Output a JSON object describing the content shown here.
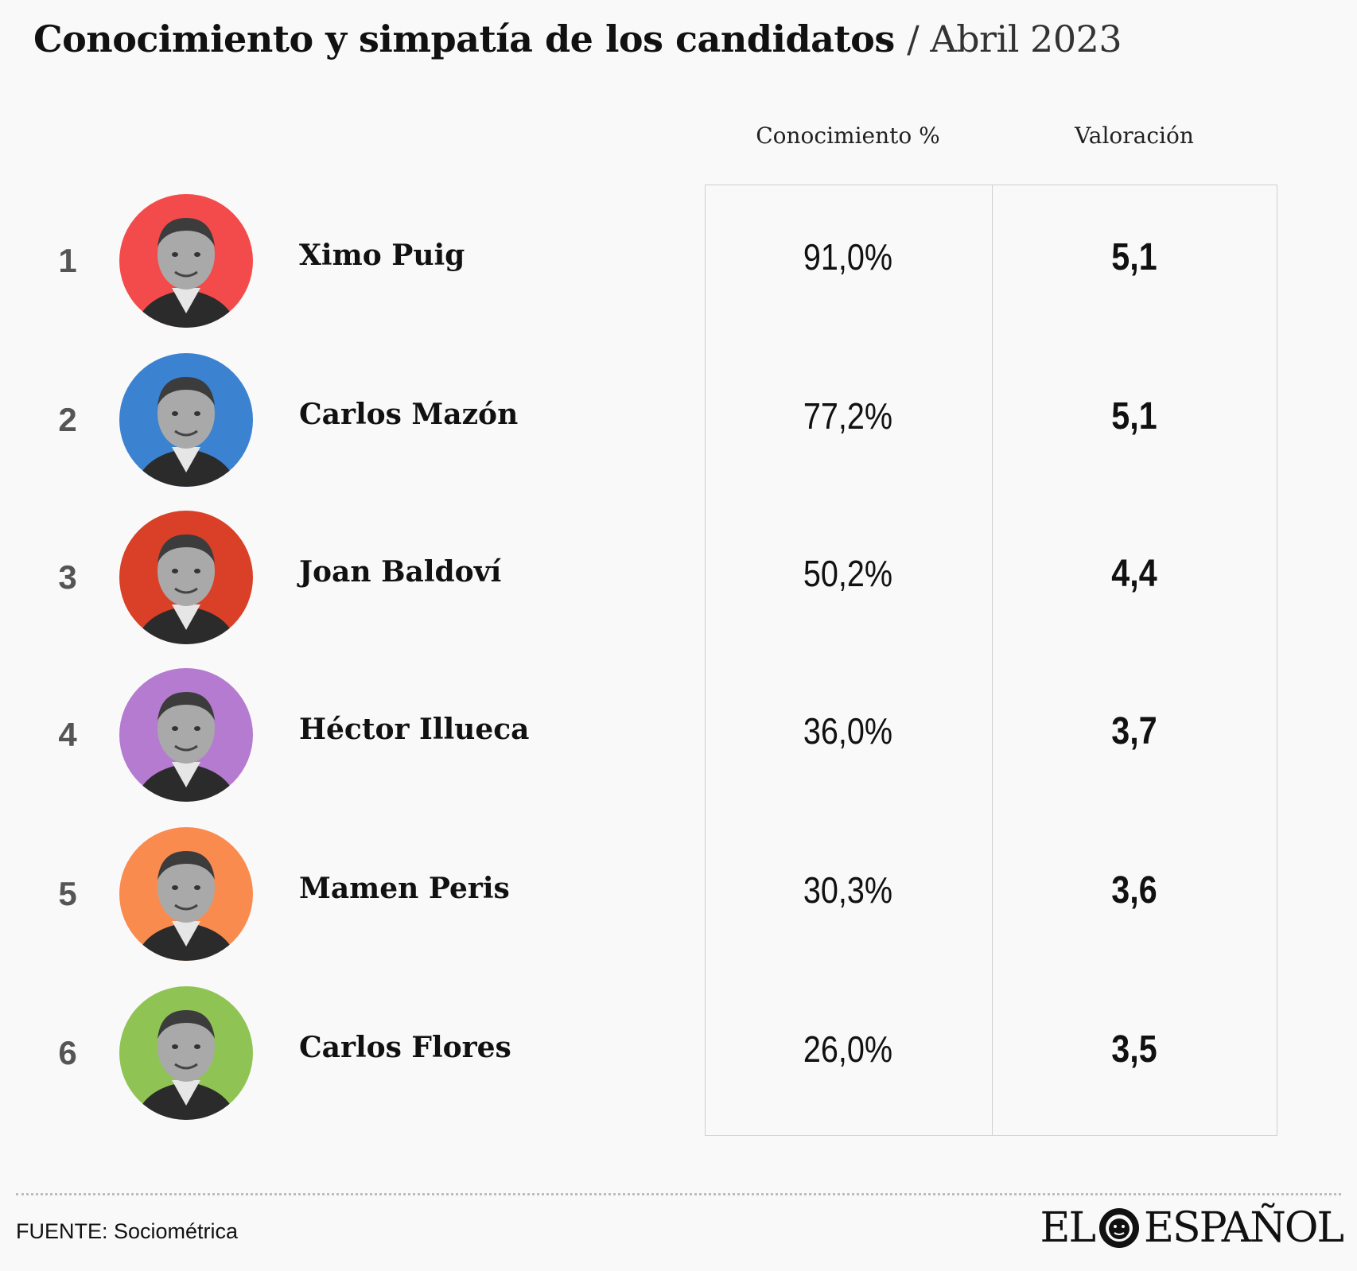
{
  "header": {
    "title": "Conocimiento y simpatía de los candidatos",
    "subtitle": "/ Abril 2023"
  },
  "columns": {
    "conocimiento": "Conocimiento %",
    "valoracion": "Valoración"
  },
  "rows": [
    {
      "rank": "1",
      "name": "Ximo Puig",
      "conocimiento": "91,0%",
      "valoracion": "5,1",
      "color": "#f34b4b"
    },
    {
      "rank": "2",
      "name": "Carlos Mazón",
      "conocimiento": "77,2%",
      "valoracion": "5,1",
      "color": "#3b82d1"
    },
    {
      "rank": "3",
      "name": "Joan Baldoví",
      "conocimiento": "50,2%",
      "valoracion": "4,4",
      "color": "#d94027"
    },
    {
      "rank": "4",
      "name": "Héctor Illueca",
      "conocimiento": "36,0%",
      "valoracion": "3,7",
      "color": "#b57bd1"
    },
    {
      "rank": "5",
      "name": "Mamen Peris",
      "conocimiento": "30,3%",
      "valoracion": "3,6",
      "color": "#f98b4f"
    },
    {
      "rank": "6",
      "name": "Carlos Flores",
      "conocimiento": "26,0%",
      "valoracion": "3,5",
      "color": "#8fc454"
    }
  ],
  "chart_data": {
    "type": "table",
    "title": "Conocimiento y simpatía de los candidatos",
    "subtitle": "Abril 2023",
    "columns": [
      "Conocimiento %",
      "Valoración"
    ],
    "categories": [
      "Ximo Puig",
      "Carlos Mazón",
      "Joan Baldoví",
      "Héctor Illueca",
      "Mamen Peris",
      "Carlos Flores"
    ],
    "series": [
      {
        "name": "Conocimiento %",
        "values": [
          91.0,
          77.2,
          50.2,
          36.0,
          30.3,
          26.0
        ]
      },
      {
        "name": "Valoración",
        "values": [
          5.1,
          5.1,
          4.4,
          3.7,
          3.6,
          3.5
        ]
      }
    ]
  },
  "footer": {
    "source": "FUENTE: Sociométrica",
    "brand_left": "EL",
    "brand_right": "ESPAÑOL",
    "brand_icon": "lion-icon"
  }
}
